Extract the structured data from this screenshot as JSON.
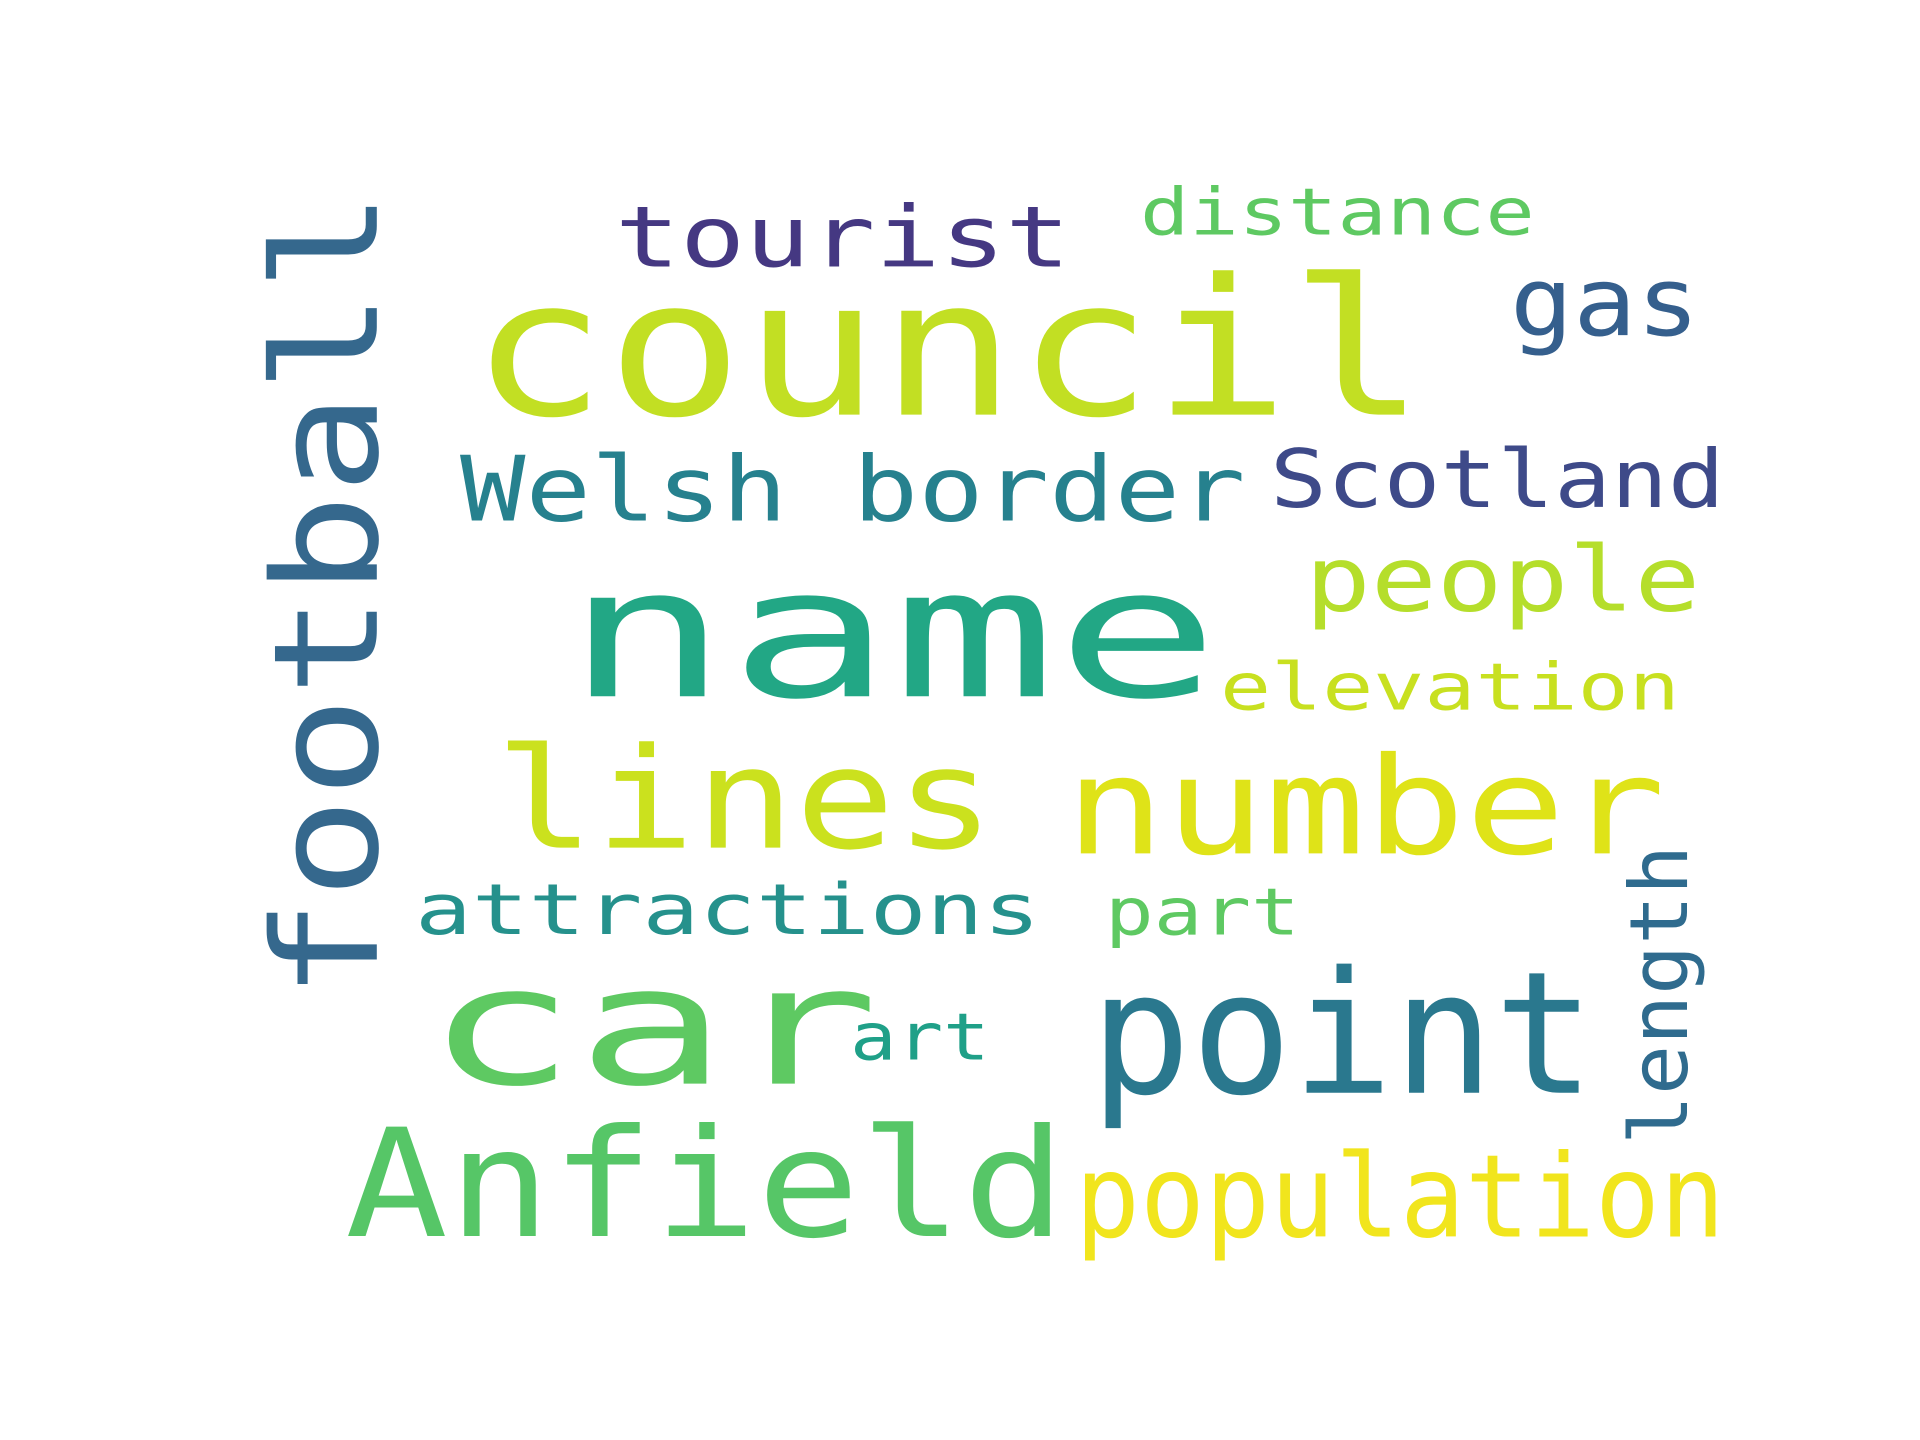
{
  "words": [
    {
      "text": "council",
      "color": "#c2df23",
      "rotated": false
    },
    {
      "text": "name",
      "color": "#22a785",
      "rotated": false
    },
    {
      "text": "car",
      "color": "#5ec962",
      "rotated": false
    },
    {
      "text": "football",
      "color": "#35688d",
      "rotated": true
    },
    {
      "text": "lines",
      "color": "#cbe11e",
      "rotated": false
    },
    {
      "text": "number",
      "color": "#dfe318",
      "rotated": false
    },
    {
      "text": "point",
      "color": "#2a788e",
      "rotated": false
    },
    {
      "text": "Anfield",
      "color": "#56c667",
      "rotated": false
    },
    {
      "text": "Welsh border",
      "color": "#26818e",
      "rotated": false
    },
    {
      "text": "Scotland",
      "color": "#3e4a89",
      "rotated": false
    },
    {
      "text": "tourist",
      "color": "#453882",
      "rotated": false
    },
    {
      "text": "population",
      "color": "#f1e51d",
      "rotated": false
    },
    {
      "text": "people",
      "color": "#b5de2b",
      "rotated": false
    },
    {
      "text": "gas",
      "color": "#355f8d",
      "rotated": false
    },
    {
      "text": "attractions",
      "color": "#25918c",
      "rotated": false
    },
    {
      "text": "distance",
      "color": "#5ec962",
      "rotated": false
    },
    {
      "text": "elevation",
      "color": "#c8e020",
      "rotated": false
    },
    {
      "text": "part",
      "color": "#5ec962",
      "rotated": false
    },
    {
      "text": "art",
      "color": "#1fa088",
      "rotated": false
    },
    {
      "text": "length",
      "color": "#2f6b8e",
      "rotated": true
    }
  ]
}
